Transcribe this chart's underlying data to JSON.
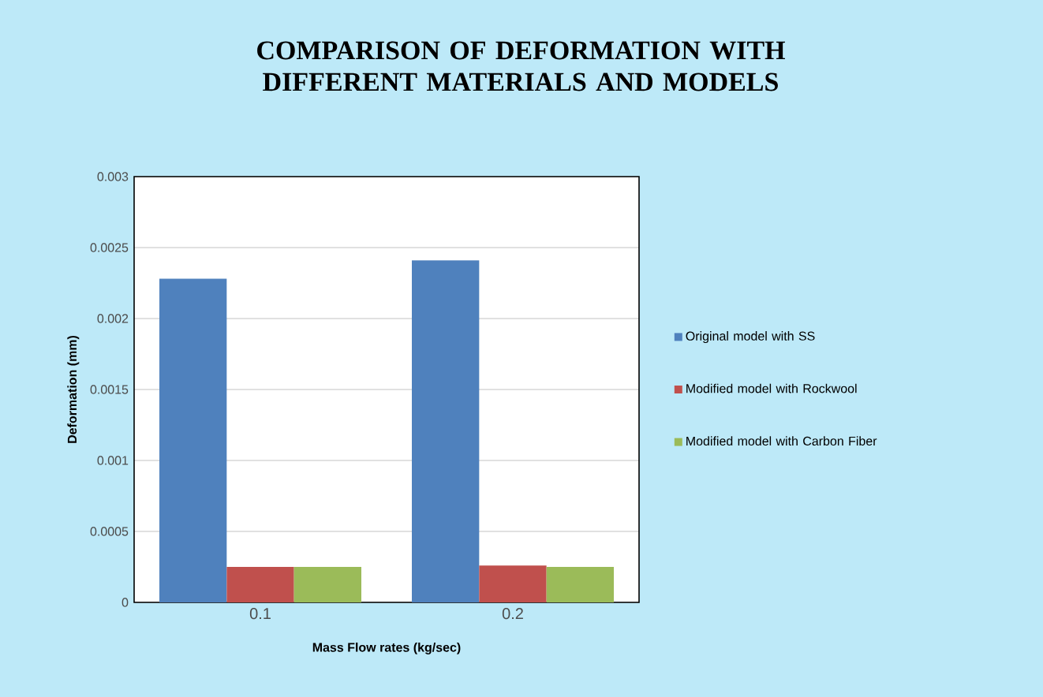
{
  "chart_data": {
    "type": "bar",
    "title": "COMPARISON OF DEFORMATION WITH DIFFERENT MATERIALS AND MODELS",
    "xlabel": "Mass Flow rates (kg/sec)",
    "ylabel": "Deformation (mm)",
    "categories": [
      "0.1",
      "0.2"
    ],
    "series": [
      {
        "name": "Original model with SS",
        "color": "#4f81bd",
        "values": [
          0.00228,
          0.00241
        ]
      },
      {
        "name": "Modified model with Rockwool",
        "color": "#c0504d",
        "values": [
          0.00025,
          0.00026
        ]
      },
      {
        "name": "Modified model with Carbon Fiber",
        "color": "#9bbb59",
        "values": [
          0.00025,
          0.00025
        ]
      }
    ],
    "ylim": [
      0,
      0.003
    ],
    "yticks": [
      0,
      {
        "value": 0.0005,
        "label": "0.0005"
      },
      {
        "value": 0.001,
        "label": "0.001"
      },
      {
        "value": 0.0015,
        "label": "0.0015"
      },
      {
        "value": 0.002,
        "label": "0.002"
      },
      {
        "value": 0.0025,
        "label": "0.0025"
      },
      {
        "value": 0.003,
        "label": "0.003"
      }
    ],
    "grid": "y",
    "legend": "right"
  }
}
